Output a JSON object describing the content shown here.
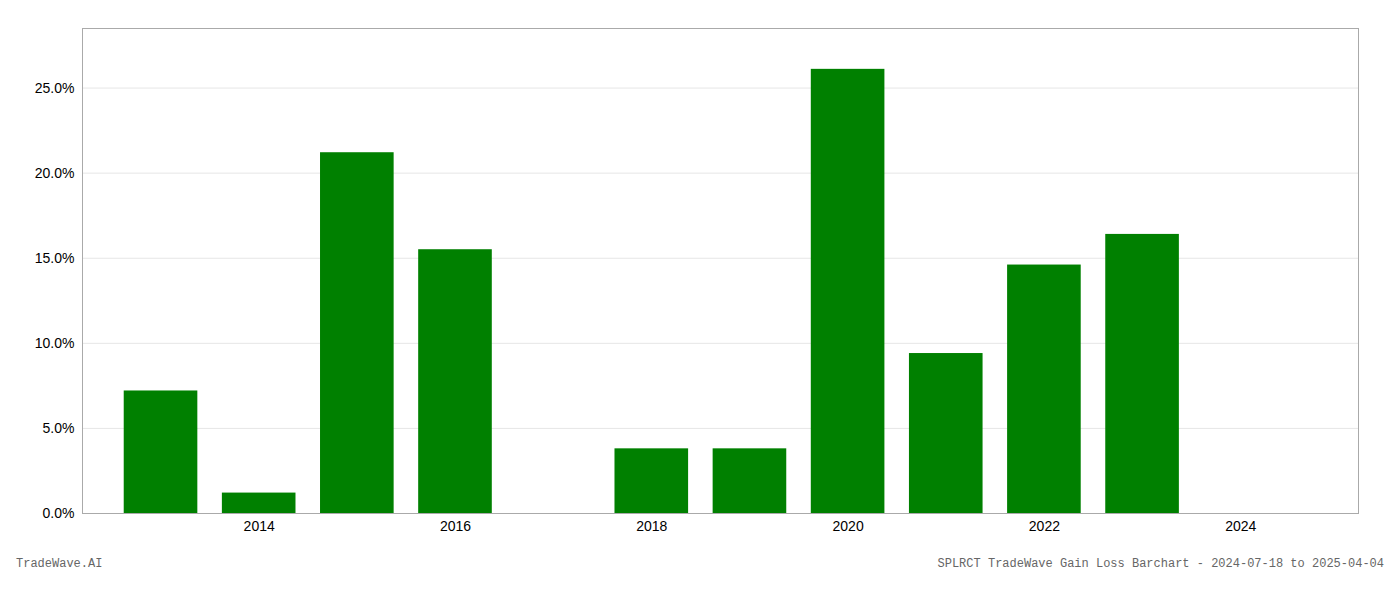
{
  "chart_data": {
    "type": "bar",
    "x": [
      2013,
      2014,
      2015,
      2016,
      2017,
      2018,
      2019,
      2020,
      2021,
      2022,
      2023
    ],
    "values": [
      0.072,
      0.012,
      0.212,
      0.155,
      0.0,
      0.038,
      0.038,
      0.261,
      0.094,
      0.146,
      0.164
    ],
    "color": "#008000",
    "xlim": [
      2012.2,
      2025.2
    ],
    "xticks": [
      2014,
      2016,
      2018,
      2020,
      2022,
      2024
    ],
    "ylim": [
      0,
      0.285
    ],
    "yticks": [
      {
        "value": 0.0,
        "label": "0.0%"
      },
      {
        "value": 0.05,
        "label": "5.0%"
      },
      {
        "value": 0.1,
        "label": "10.0%"
      },
      {
        "value": 0.15,
        "label": "15.0%"
      },
      {
        "value": 0.2,
        "label": "20.0%"
      },
      {
        "value": 0.25,
        "label": "25.0%"
      }
    ],
    "grid": true,
    "annotations": [
      "TradeWave.AI",
      "SPLRCT TradeWave Gain Loss Barchart - 2024-07-18 to 2025-04-04"
    ]
  }
}
